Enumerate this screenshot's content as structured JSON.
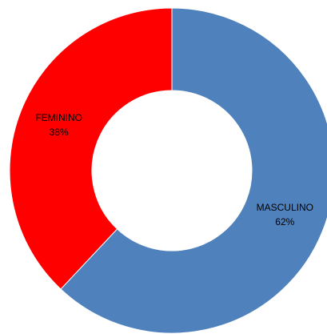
{
  "chart_data": {
    "type": "donut",
    "categories": [
      "MASCULINO",
      "FEMININO"
    ],
    "values": [
      62,
      38
    ],
    "value_labels": [
      "62%",
      "38%"
    ],
    "colors": [
      "#4f81bd",
      "#ff0000"
    ]
  }
}
